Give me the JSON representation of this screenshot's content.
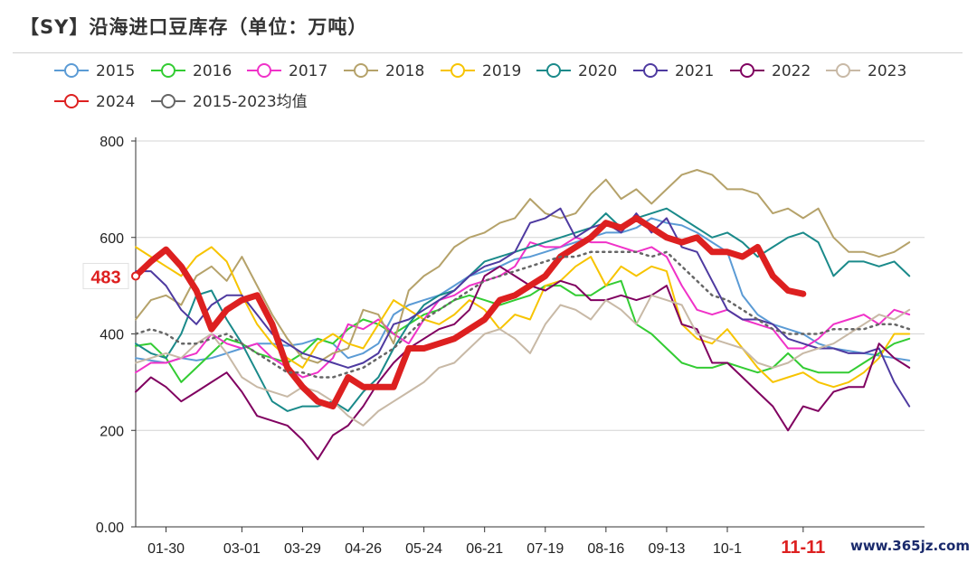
{
  "title": "【SY】沿海进口豆库存（单位：万吨）",
  "watermark": "www.365jz.com",
  "chart_data": {
    "type": "line",
    "xlabel": "",
    "ylabel": "",
    "ylim": [
      0,
      800
    ],
    "y_ticks": [
      "0.00",
      "200",
      "400",
      "600",
      "800"
    ],
    "x_ticks": [
      "01-30",
      "03-01",
      "03-29",
      "04-26",
      "05-24",
      "06-21",
      "07-19",
      "08-16",
      "09-13",
      "10-1",
      "11-11"
    ],
    "highlight_tick": "11-11",
    "highlight_value": "483",
    "grid": true,
    "legend_position": "top-left",
    "x_range": [
      0,
      52
    ],
    "series": [
      {
        "name": "2015",
        "color": "#5b9bd5",
        "width": 2,
        "dash": false,
        "values": [
          350,
          345,
          340,
          350,
          345,
          350,
          360,
          370,
          380,
          380,
          375,
          380,
          390,
          380,
          350,
          360,
          380,
          440,
          460,
          470,
          480,
          500,
          520,
          530,
          540,
          555,
          560,
          570,
          580,
          590,
          600,
          610,
          610,
          620,
          640,
          630,
          625,
          610,
          590,
          570,
          480,
          440,
          420,
          410,
          400,
          380,
          370,
          365,
          360,
          355,
          350,
          345
        ]
      },
      {
        "name": "2016",
        "color": "#33cc33",
        "width": 2,
        "dash": false,
        "values": [
          375,
          380,
          350,
          300,
          330,
          360,
          390,
          380,
          360,
          350,
          340,
          360,
          390,
          380,
          410,
          430,
          420,
          400,
          420,
          440,
          450,
          470,
          480,
          470,
          460,
          470,
          480,
          500,
          500,
          480,
          480,
          500,
          510,
          420,
          400,
          370,
          340,
          330,
          330,
          340,
          330,
          320,
          330,
          360,
          330,
          320,
          320,
          320,
          340,
          360,
          380,
          390
        ]
      },
      {
        "name": "2017",
        "color": "#f032c8",
        "width": 2,
        "dash": false,
        "values": [
          320,
          340,
          340,
          350,
          360,
          400,
          380,
          370,
          380,
          350,
          330,
          310,
          320,
          350,
          420,
          410,
          430,
          400,
          380,
          430,
          470,
          480,
          500,
          510,
          520,
          540,
          590,
          580,
          580,
          600,
          590,
          590,
          580,
          570,
          580,
          560,
          500,
          450,
          440,
          450,
          430,
          420,
          410,
          370,
          370,
          390,
          420,
          430,
          440,
          420,
          450,
          440
        ]
      },
      {
        "name": "2018",
        "color": "#b5a26a",
        "width": 2,
        "dash": false,
        "values": [
          430,
          470,
          480,
          460,
          520,
          540,
          510,
          560,
          500,
          440,
          390,
          350,
          340,
          360,
          370,
          450,
          440,
          380,
          490,
          520,
          540,
          580,
          600,
          610,
          630,
          640,
          680,
          650,
          640,
          650,
          690,
          720,
          680,
          700,
          670,
          700,
          730,
          740,
          730,
          700,
          700,
          690,
          650,
          660,
          640,
          660,
          600,
          570,
          570,
          560,
          570,
          590
        ]
      },
      {
        "name": "2019",
        "color": "#f7c400",
        "width": 2,
        "dash": false,
        "values": [
          580,
          560,
          540,
          520,
          560,
          580,
          550,
          480,
          420,
          380,
          350,
          330,
          380,
          400,
          380,
          370,
          420,
          470,
          450,
          430,
          420,
          440,
          470,
          450,
          410,
          440,
          430,
          500,
          510,
          540,
          560,
          500,
          540,
          520,
          540,
          530,
          420,
          390,
          380,
          410,
          370,
          330,
          300,
          310,
          320,
          300,
          290,
          300,
          320,
          350,
          400,
          400
        ]
      },
      {
        "name": "2020",
        "color": "#1a8a8a",
        "width": 2,
        "dash": false,
        "values": [
          380,
          360,
          350,
          400,
          480,
          490,
          430,
          380,
          320,
          260,
          240,
          250,
          250,
          260,
          240,
          280,
          310,
          370,
          420,
          460,
          480,
          490,
          520,
          550,
          560,
          570,
          580,
          590,
          600,
          610,
          620,
          650,
          620,
          640,
          650,
          660,
          640,
          620,
          600,
          610,
          590,
          560,
          580,
          600,
          610,
          590,
          520,
          550,
          550,
          540,
          550,
          520
        ]
      },
      {
        "name": "2021",
        "color": "#4e3aa0",
        "width": 2,
        "dash": false,
        "values": [
          530,
          530,
          500,
          450,
          420,
          460,
          480,
          480,
          440,
          400,
          380,
          360,
          350,
          340,
          330,
          340,
          360,
          420,
          430,
          450,
          470,
          490,
          520,
          540,
          550,
          570,
          630,
          640,
          660,
          600,
          620,
          630,
          610,
          650,
          610,
          640,
          580,
          570,
          510,
          450,
          430,
          430,
          420,
          390,
          380,
          370,
          370,
          360,
          360,
          370,
          300,
          250
        ]
      },
      {
        "name": "2022",
        "color": "#800060",
        "width": 2,
        "dash": false,
        "values": [
          280,
          310,
          290,
          260,
          280,
          300,
          320,
          280,
          230,
          220,
          210,
          180,
          140,
          190,
          210,
          250,
          300,
          340,
          370,
          390,
          410,
          420,
          450,
          520,
          540,
          520,
          500,
          490,
          510,
          500,
          470,
          470,
          480,
          470,
          480,
          500,
          420,
          410,
          340,
          340,
          310,
          280,
          250,
          200,
          250,
          240,
          280,
          290,
          290,
          380,
          350,
          330
        ]
      },
      {
        "name": "2023",
        "color": "#c8b9a6",
        "width": 2,
        "dash": false,
        "values": [
          340,
          350,
          360,
          350,
          380,
          400,
          360,
          310,
          290,
          280,
          270,
          290,
          280,
          260,
          230,
          210,
          240,
          260,
          280,
          300,
          330,
          340,
          370,
          400,
          410,
          390,
          360,
          420,
          460,
          450,
          430,
          470,
          450,
          420,
          480,
          470,
          460,
          400,
          390,
          380,
          370,
          340,
          330,
          340,
          360,
          370,
          380,
          400,
          420,
          440,
          430,
          450
        ]
      },
      {
        "name": "2024",
        "color": "#dd2020",
        "width": 7,
        "dash": false,
        "marker_first": true,
        "values": [
          520,
          550,
          575,
          540,
          490,
          410,
          450,
          470,
          480,
          420,
          330,
          290,
          260,
          250,
          310,
          290,
          290,
          290,
          370,
          370,
          380,
          390,
          410,
          430,
          470,
          480,
          500,
          520,
          560,
          580,
          600,
          630,
          620,
          640,
          620,
          600,
          590,
          600,
          570,
          570,
          560,
          580,
          520,
          490,
          483
        ]
      },
      {
        "name": "2015-2023均值",
        "color": "#666666",
        "width": 2.5,
        "dash": true,
        "values": [
          400,
          410,
          400,
          380,
          380,
          390,
          400,
          380,
          360,
          340,
          320,
          320,
          310,
          310,
          320,
          330,
          350,
          370,
          400,
          430,
          450,
          470,
          490,
          510,
          520,
          530,
          540,
          550,
          560,
          560,
          570,
          570,
          570,
          570,
          560,
          570,
          540,
          510,
          480,
          470,
          450,
          430,
          410,
          400,
          400,
          400,
          410,
          410,
          410,
          420,
          420,
          410
        ]
      }
    ]
  }
}
